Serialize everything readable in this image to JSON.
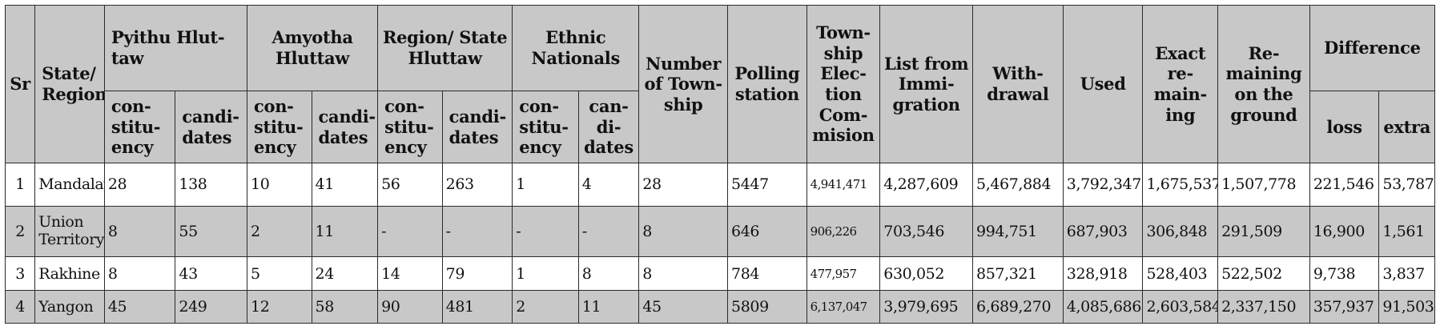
{
  "headers": {
    "sr": "Sr",
    "state_region": "State/ Region",
    "pyithu": "Pyithu Hlut-taw",
    "amyotha": "Amyotha Hluttaw",
    "region_state": "Region/ State Hluttaw",
    "ethnic": "Ethnic Nationals",
    "num_township": "Number of Town-ship",
    "polling_station": "Polling station",
    "township_election": "Town-ship Elec-tion Com-mision",
    "list_immigration": "List from Immi-gration",
    "withdrawal": "With-drawal",
    "used": "Used",
    "exact_remaining": "Exact re-main-ing",
    "remaining_ground": "Re-maining on the ground",
    "difference": "Difference",
    "constituency": "con-stitu-ency",
    "candidates": "candi-dates",
    "candidates_ethnic": "can-di-dates",
    "loss": "loss",
    "extra": "extra"
  },
  "rows": [
    {
      "sr": "1",
      "region": "Mandalay",
      "py_con": "28",
      "py_can": "138",
      "am_con": "10",
      "am_can": "41",
      "rs_con": "56",
      "rs_can": "263",
      "et_con": "1",
      "et_can": "4",
      "township": "28",
      "polling": "5447",
      "tec": "4,941,471",
      "immigration": "4,287,609",
      "withdrawal": "5,467,884",
      "used": "3,792,347",
      "exact_remaining": "1,675,537",
      "remaining_ground": "1,507,778",
      "loss": "221,546",
      "extra": "53,787"
    },
    {
      "sr": "2",
      "region": "Union Territory",
      "py_con": "8",
      "py_can": "55",
      "am_con": "2",
      "am_can": "11",
      "rs_con": "-",
      "rs_can": "-",
      "et_con": "-",
      "et_can": "-",
      "township": "8",
      "polling": "646",
      "tec": "906,226",
      "immigration": "703,546",
      "withdrawal": "994,751",
      "used": "687,903",
      "exact_remaining": "306,848",
      "remaining_ground": "291,509",
      "loss": "16,900",
      "extra": "1,561"
    },
    {
      "sr": "3",
      "region": "Rakhine",
      "py_con": "8",
      "py_can": "43",
      "am_con": "5",
      "am_can": "24",
      "rs_con": "14",
      "rs_can": "79",
      "et_con": "1",
      "et_can": "8",
      "township": "8",
      "polling": "784",
      "tec": "477,957",
      "immigration": "630,052",
      "withdrawal": "857,321",
      "used": "328,918",
      "exact_remaining": "528,403",
      "remaining_ground": "522,502",
      "loss": "9,738",
      "extra": "3,837"
    },
    {
      "sr": "4",
      "region": "Yangon",
      "py_con": "45",
      "py_can": "249",
      "am_con": "12",
      "am_can": "58",
      "rs_con": "90",
      "rs_can": "481",
      "et_con": "2",
      "et_can": "11",
      "township": "45",
      "polling": "5809",
      "tec": "6,137,047",
      "immigration": "3,979,695",
      "withdrawal": "6,689,270",
      "used": "4,085,686",
      "exact_remaining": "2,603,584",
      "remaining_ground": "2,337,150",
      "loss": "357,937",
      "extra": "91,503"
    }
  ]
}
